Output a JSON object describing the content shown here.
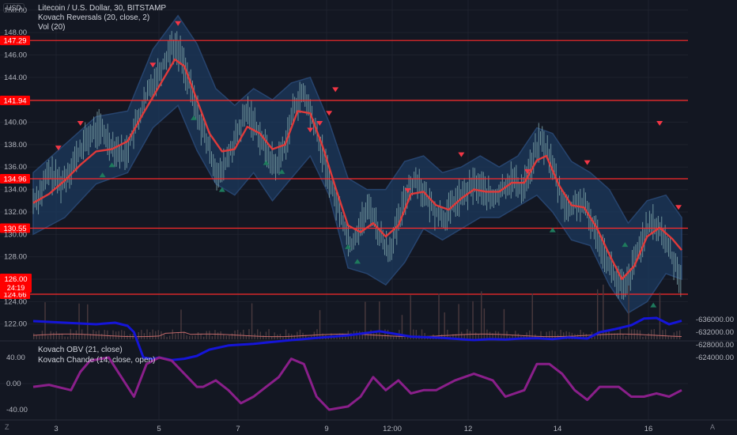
{
  "legend": {
    "title": "Litecoin / U.S. Dollar, 30, BITSTAMP",
    "ind1": "Kovach Reversals (20, close, 2)",
    "ind2": "Vol (20)",
    "lower1": "Kovach OBV (21, close)",
    "lower2": "Kovach Chande (14, close, open)"
  },
  "currency_label": "USD",
  "corner_left": "Z",
  "corner_right": "A",
  "colors": {
    "background": "#131722",
    "grid": "#1e222d",
    "hline": "#ff2b2b",
    "band_fill": "#1c3a5e",
    "band_edge": "#27446e",
    "ma": "#e03a3a",
    "candle": "#7ea3a8",
    "triangle_down": "#f23645",
    "triangle_up": "#1e7a5c",
    "volume": "#4a3a3e",
    "vol_ma": "#c46a6a",
    "obv": "#1515d8",
    "chande": "#8a1f8a",
    "axis_text": "#b2b5be",
    "price_tag": "#ff0000"
  },
  "chart_data": [
    {
      "type": "line",
      "title": "Litecoin / U.S. Dollar, 30, BITSTAMP",
      "x_ticks": [
        "3",
        "5",
        "7",
        "9",
        "12:00",
        "12",
        "14",
        "16"
      ],
      "y_ticks": [
        "150.00",
        "148.00",
        "146.00",
        "144.00",
        "142.00",
        "140.00",
        "138.00",
        "136.00",
        "134.00",
        "132.00",
        "130.00",
        "128.00",
        "126.00",
        "124.00",
        "122.00"
      ],
      "ylim": [
        120.5,
        150.9
      ],
      "horizontal_lines": [
        "147.29",
        "141.94",
        "134.96",
        "130.55",
        "124.66"
      ],
      "last_price": "126.00",
      "countdown": "24:19",
      "price_series": [
        {
          "t": 0,
          "v": 133.0
        },
        {
          "t": 2,
          "v": 133.5
        },
        {
          "t": 5,
          "v": 135.5
        },
        {
          "t": 9,
          "v": 134.5
        },
        {
          "t": 13,
          "v": 136.5
        },
        {
          "t": 17,
          "v": 138.5
        },
        {
          "t": 21,
          "v": 139.5
        },
        {
          "t": 25,
          "v": 138.0
        },
        {
          "t": 29,
          "v": 137.0
        },
        {
          "t": 33,
          "v": 140.0
        },
        {
          "t": 37,
          "v": 143.0
        },
        {
          "t": 41,
          "v": 145.0
        },
        {
          "t": 44,
          "v": 147.0
        },
        {
          "t": 47,
          "v": 146.0
        },
        {
          "t": 50,
          "v": 143.0
        },
        {
          "t": 53,
          "v": 140.0
        },
        {
          "t": 56,
          "v": 137.5
        },
        {
          "t": 59,
          "v": 135.0
        },
        {
          "t": 62,
          "v": 137.0
        },
        {
          "t": 65,
          "v": 139.0
        },
        {
          "t": 68,
          "v": 141.0
        },
        {
          "t": 71,
          "v": 139.5
        },
        {
          "t": 74,
          "v": 137.5
        },
        {
          "t": 77,
          "v": 136.0
        },
        {
          "t": 80,
          "v": 138.0
        },
        {
          "t": 83,
          "v": 141.5
        },
        {
          "t": 86,
          "v": 142.5
        },
        {
          "t": 89,
          "v": 140.0
        },
        {
          "t": 92,
          "v": 137.0
        },
        {
          "t": 95,
          "v": 134.0
        },
        {
          "t": 98,
          "v": 131.5
        },
        {
          "t": 101,
          "v": 129.0
        },
        {
          "t": 104,
          "v": 131.0
        },
        {
          "t": 107,
          "v": 132.5
        },
        {
          "t": 110,
          "v": 130.0
        },
        {
          "t": 113,
          "v": 128.5
        },
        {
          "t": 116,
          "v": 131.0
        },
        {
          "t": 119,
          "v": 134.0
        },
        {
          "t": 122,
          "v": 135.0
        },
        {
          "t": 125,
          "v": 133.0
        },
        {
          "t": 128,
          "v": 132.0
        },
        {
          "t": 131,
          "v": 131.5
        },
        {
          "t": 134,
          "v": 133.0
        },
        {
          "t": 137,
          "v": 133.5
        },
        {
          "t": 140,
          "v": 134.5
        },
        {
          "t": 143,
          "v": 134.0
        },
        {
          "t": 146,
          "v": 133.0
        },
        {
          "t": 149,
          "v": 134.0
        },
        {
          "t": 152,
          "v": 135.0
        },
        {
          "t": 155,
          "v": 134.0
        },
        {
          "t": 158,
          "v": 136.0
        },
        {
          "t": 161,
          "v": 138.5
        },
        {
          "t": 164,
          "v": 137.0
        },
        {
          "t": 167,
          "v": 134.0
        },
        {
          "t": 170,
          "v": 132.0
        },
        {
          "t": 173,
          "v": 133.0
        },
        {
          "t": 176,
          "v": 132.0
        },
        {
          "t": 179,
          "v": 130.0
        },
        {
          "t": 182,
          "v": 128.0
        },
        {
          "t": 185,
          "v": 126.0
        },
        {
          "t": 188,
          "v": 125.0
        },
        {
          "t": 191,
          "v": 127.5
        },
        {
          "t": 194,
          "v": 130.0
        },
        {
          "t": 197,
          "v": 131.0
        },
        {
          "t": 200,
          "v": 130.0
        },
        {
          "t": 203,
          "v": 128.0
        },
        {
          "t": 206,
          "v": 126.0
        }
      ],
      "ma_series": [
        {
          "t": 0,
          "v": 132.8
        },
        {
          "t": 5,
          "v": 133.6
        },
        {
          "t": 10,
          "v": 134.8
        },
        {
          "t": 15,
          "v": 136.2
        },
        {
          "t": 20,
          "v": 137.4
        },
        {
          "t": 25,
          "v": 137.6
        },
        {
          "t": 30,
          "v": 138.3
        },
        {
          "t": 35,
          "v": 140.8
        },
        {
          "t": 40,
          "v": 143.2
        },
        {
          "t": 45,
          "v": 145.6
        },
        {
          "t": 48,
          "v": 145.0
        },
        {
          "t": 52,
          "v": 142.0
        },
        {
          "t": 56,
          "v": 139.0
        },
        {
          "t": 60,
          "v": 137.4
        },
        {
          "t": 64,
          "v": 137.6
        },
        {
          "t": 68,
          "v": 139.6
        },
        {
          "t": 72,
          "v": 139.0
        },
        {
          "t": 76,
          "v": 137.6
        },
        {
          "t": 80,
          "v": 138.0
        },
        {
          "t": 84,
          "v": 141.0
        },
        {
          "t": 88,
          "v": 140.8
        },
        {
          "t": 92,
          "v": 137.8
        },
        {
          "t": 96,
          "v": 134.2
        },
        {
          "t": 100,
          "v": 130.8
        },
        {
          "t": 104,
          "v": 130.2
        },
        {
          "t": 108,
          "v": 131.0
        },
        {
          "t": 112,
          "v": 129.8
        },
        {
          "t": 116,
          "v": 130.8
        },
        {
          "t": 120,
          "v": 133.6
        },
        {
          "t": 124,
          "v": 133.8
        },
        {
          "t": 128,
          "v": 132.6
        },
        {
          "t": 132,
          "v": 132.2
        },
        {
          "t": 136,
          "v": 133.2
        },
        {
          "t": 140,
          "v": 134.0
        },
        {
          "t": 144,
          "v": 133.8
        },
        {
          "t": 148,
          "v": 133.8
        },
        {
          "t": 152,
          "v": 134.6
        },
        {
          "t": 156,
          "v": 134.6
        },
        {
          "t": 160,
          "v": 136.6
        },
        {
          "t": 163,
          "v": 137.0
        },
        {
          "t": 167,
          "v": 134.4
        },
        {
          "t": 171,
          "v": 132.6
        },
        {
          "t": 175,
          "v": 132.4
        },
        {
          "t": 179,
          "v": 130.6
        },
        {
          "t": 183,
          "v": 128.2
        },
        {
          "t": 187,
          "v": 126.0
        },
        {
          "t": 191,
          "v": 127.2
        },
        {
          "t": 195,
          "v": 129.8
        },
        {
          "t": 199,
          "v": 130.6
        },
        {
          "t": 203,
          "v": 129.6
        },
        {
          "t": 206,
          "v": 128.6
        }
      ],
      "band_upper": [
        {
          "t": 0,
          "v": 135.5
        },
        {
          "t": 10,
          "v": 138.0
        },
        {
          "t": 20,
          "v": 140.5
        },
        {
          "t": 30,
          "v": 141.0
        },
        {
          "t": 38,
          "v": 146.5
        },
        {
          "t": 46,
          "v": 149.5
        },
        {
          "t": 52,
          "v": 147.0
        },
        {
          "t": 58,
          "v": 143.0
        },
        {
          "t": 64,
          "v": 141.5
        },
        {
          "t": 70,
          "v": 143.0
        },
        {
          "t": 76,
          "v": 142.0
        },
        {
          "t": 82,
          "v": 143.5
        },
        {
          "t": 88,
          "v": 144.0
        },
        {
          "t": 94,
          "v": 140.0
        },
        {
          "t": 100,
          "v": 135.0
        },
        {
          "t": 106,
          "v": 134.0
        },
        {
          "t": 112,
          "v": 134.0
        },
        {
          "t": 118,
          "v": 136.5
        },
        {
          "t": 124,
          "v": 137.0
        },
        {
          "t": 130,
          "v": 135.5
        },
        {
          "t": 136,
          "v": 136.0
        },
        {
          "t": 142,
          "v": 137.0
        },
        {
          "t": 148,
          "v": 136.0
        },
        {
          "t": 154,
          "v": 137.0
        },
        {
          "t": 160,
          "v": 139.5
        },
        {
          "t": 165,
          "v": 139.0
        },
        {
          "t": 171,
          "v": 136.5
        },
        {
          "t": 177,
          "v": 135.5
        },
        {
          "t": 183,
          "v": 134.0
        },
        {
          "t": 189,
          "v": 131.0
        },
        {
          "t": 195,
          "v": 133.0
        },
        {
          "t": 201,
          "v": 133.5
        },
        {
          "t": 206,
          "v": 131.5
        }
      ],
      "band_lower": [
        {
          "t": 0,
          "v": 130.0
        },
        {
          "t": 10,
          "v": 131.5
        },
        {
          "t": 20,
          "v": 134.5
        },
        {
          "t": 30,
          "v": 135.5
        },
        {
          "t": 38,
          "v": 139.5
        },
        {
          "t": 46,
          "v": 141.5
        },
        {
          "t": 52,
          "v": 137.5
        },
        {
          "t": 58,
          "v": 134.5
        },
        {
          "t": 64,
          "v": 133.5
        },
        {
          "t": 70,
          "v": 135.5
        },
        {
          "t": 76,
          "v": 133.0
        },
        {
          "t": 82,
          "v": 135.0
        },
        {
          "t": 88,
          "v": 137.0
        },
        {
          "t": 94,
          "v": 133.5
        },
        {
          "t": 100,
          "v": 127.0
        },
        {
          "t": 106,
          "v": 126.5
        },
        {
          "t": 112,
          "v": 125.5
        },
        {
          "t": 118,
          "v": 127.5
        },
        {
          "t": 124,
          "v": 130.5
        },
        {
          "t": 130,
          "v": 129.5
        },
        {
          "t": 136,
          "v": 130.5
        },
        {
          "t": 142,
          "v": 131.5
        },
        {
          "t": 148,
          "v": 131.5
        },
        {
          "t": 154,
          "v": 132.5
        },
        {
          "t": 160,
          "v": 133.5
        },
        {
          "t": 165,
          "v": 132.0
        },
        {
          "t": 171,
          "v": 129.5
        },
        {
          "t": 177,
          "v": 129.0
        },
        {
          "t": 183,
          "v": 125.5
        },
        {
          "t": 189,
          "v": 123.0
        },
        {
          "t": 195,
          "v": 124.0
        },
        {
          "t": 201,
          "v": 126.5
        },
        {
          "t": 206,
          "v": 126.0
        }
      ],
      "reversal_down": [
        {
          "t": 8,
          "v": 137.7
        },
        {
          "t": 15,
          "v": 139.9
        },
        {
          "t": 38,
          "v": 145.1
        },
        {
          "t": 46,
          "v": 148.8
        },
        {
          "t": 88,
          "v": 139.3
        },
        {
          "t": 91,
          "v": 139.9
        },
        {
          "t": 94,
          "v": 140.8
        },
        {
          "t": 96,
          "v": 142.9
        },
        {
          "t": 119,
          "v": 133.9
        },
        {
          "t": 136,
          "v": 137.1
        },
        {
          "t": 157,
          "v": 135.6
        },
        {
          "t": 176,
          "v": 136.4
        },
        {
          "t": 199,
          "v": 139.9
        },
        {
          "t": 205,
          "v": 132.4
        }
      ],
      "reversal_up": [
        {
          "t": 22,
          "v": 135.3
        },
        {
          "t": 25,
          "v": 136.2
        },
        {
          "t": 51,
          "v": 140.4
        },
        {
          "t": 60,
          "v": 134.0
        },
        {
          "t": 74,
          "v": 136.4
        },
        {
          "t": 79,
          "v": 135.6
        },
        {
          "t": 100,
          "v": 128.9
        },
        {
          "t": 103,
          "v": 127.6
        },
        {
          "t": 165,
          "v": 130.4
        },
        {
          "t": 188,
          "v": 129.1
        },
        {
          "t": 197,
          "v": 123.7
        }
      ]
    },
    {
      "type": "line",
      "y_ticks": [
        "40.00",
        "0.00",
        "-40.00"
      ],
      "right_ticks": [
        "-624000.00",
        "-628000.00",
        "-632000.00",
        "-636000.00"
      ],
      "series": [
        {
          "name": "Kovach OBV (21, close)",
          "scale": "right",
          "x": [
            0,
            10,
            20,
            26,
            30,
            32,
            35,
            38,
            40,
            44,
            48,
            52,
            56,
            62,
            70,
            80,
            90,
            100,
            110,
            120,
            130,
            140,
            145,
            150,
            155,
            160,
            165,
            170,
            176,
            180,
            185,
            190,
            194,
            198,
            202,
            206
          ],
          "values": [
            -635500,
            -635000,
            -634500,
            -635000,
            -634000,
            -632000,
            -624000,
            -623500,
            -624000,
            -623200,
            -623600,
            -624500,
            -626500,
            -627800,
            -628300,
            -629300,
            -630200,
            -631000,
            -632300,
            -630600,
            -630200,
            -629500,
            -629800,
            -629700,
            -630000,
            -630100,
            -629800,
            -630300,
            -630000,
            -632000,
            -633000,
            -634200,
            -636300,
            -636500,
            -634500,
            -635600
          ]
        },
        {
          "name": "Kovach Chande (14, close, open)",
          "scale": "left",
          "x": [
            0,
            5,
            12,
            15,
            18,
            24,
            28,
            32,
            36,
            40,
            44,
            48,
            52,
            54,
            58,
            62,
            66,
            70,
            74,
            78,
            82,
            86,
            90,
            94,
            100,
            104,
            108,
            112,
            116,
            120,
            124,
            128,
            134,
            140,
            146,
            150,
            156,
            160,
            164,
            168,
            172,
            176,
            180,
            186,
            190,
            194,
            198,
            202,
            206
          ],
          "values": [
            -5,
            -2,
            -10,
            18,
            35,
            40,
            10,
            -20,
            30,
            40,
            35,
            15,
            -5,
            -5,
            5,
            -10,
            -30,
            -20,
            -5,
            10,
            38,
            30,
            -20,
            -40,
            -35,
            -20,
            10,
            -10,
            5,
            -15,
            -10,
            -10,
            5,
            15,
            5,
            -20,
            -10,
            30,
            30,
            15,
            -10,
            -25,
            -5,
            -5,
            -20,
            -20,
            -15,
            -20,
            -10
          ]
        }
      ]
    }
  ]
}
